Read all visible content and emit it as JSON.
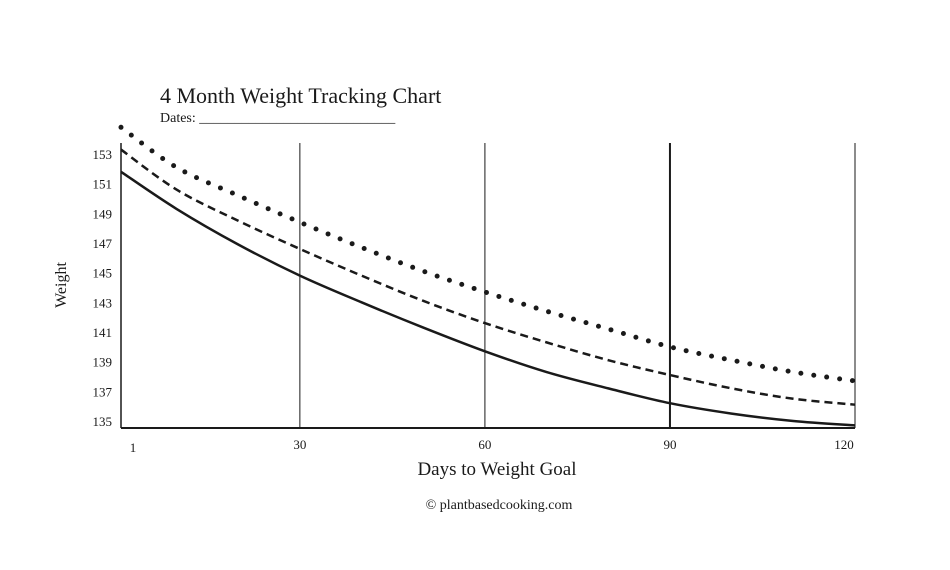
{
  "chart_data": {
    "type": "line",
    "title": "4 Month Weight Tracking Chart",
    "dates_label": "Dates: ____________________________",
    "xlabel": "Days to Weight Goal",
    "ylabel": "Weight",
    "footer": "© plantbasedcooking.com",
    "xlim": [
      1,
      120
    ],
    "ylim": [
      135,
      153
    ],
    "x_ticks": [
      1,
      30,
      60,
      90,
      120
    ],
    "y_ticks": [
      135,
      137,
      139,
      141,
      143,
      145,
      147,
      149,
      151,
      153
    ],
    "vertical_gridlines_at": [
      30,
      60,
      90,
      120
    ],
    "grid": "vertical only",
    "legend": "none",
    "series": [
      {
        "style": "dotted",
        "x": [
          1,
          10,
          20,
          30,
          40,
          50,
          60,
          70,
          80,
          90,
          100,
          110,
          120
        ],
        "y": [
          154.8,
          152.1,
          150.2,
          148.4,
          146.7,
          145.1,
          143.7,
          142.4,
          141.2,
          140.0,
          139.1,
          138.3,
          137.7
        ]
      },
      {
        "style": "dashed",
        "x": [
          1,
          10,
          20,
          30,
          40,
          50,
          60,
          70,
          80,
          90,
          100,
          110,
          120
        ],
        "y": [
          153.3,
          150.6,
          148.5,
          146.6,
          144.8,
          143.1,
          141.6,
          140.3,
          139.1,
          138.1,
          137.2,
          136.5,
          136.1
        ]
      },
      {
        "style": "solid",
        "x": [
          1,
          10,
          20,
          30,
          40,
          50,
          60,
          70,
          80,
          90,
          100,
          110,
          120
        ],
        "y": [
          151.8,
          149.3,
          146.9,
          144.8,
          143.0,
          141.3,
          139.7,
          138.3,
          137.2,
          136.2,
          135.5,
          135.0,
          134.7
        ]
      }
    ]
  }
}
